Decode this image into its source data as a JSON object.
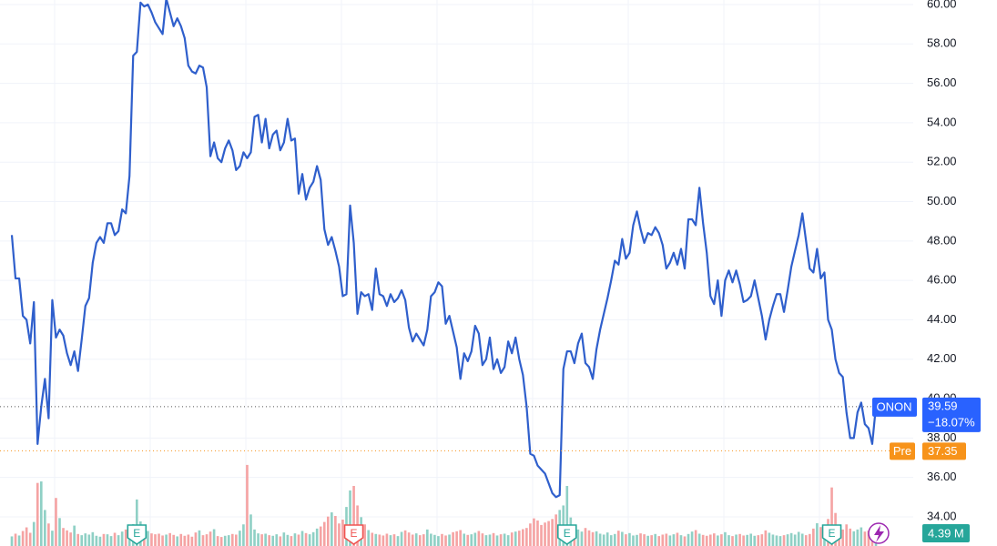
{
  "chart_data": {
    "type": "line",
    "ylim": [
      32.52,
      60.23
    ],
    "yticks": [
      {
        "value": 34,
        "label": "34.00"
      },
      {
        "value": 36,
        "label": "36.00"
      },
      {
        "value": 38,
        "label": "38.00"
      },
      {
        "value": 40,
        "label": "40.00"
      },
      {
        "value": 42,
        "label": "42.00"
      },
      {
        "value": 44,
        "label": "44.00"
      },
      {
        "value": 46,
        "label": "46.00"
      },
      {
        "value": 48,
        "label": "48.00"
      },
      {
        "value": 50,
        "label": "50.00"
      },
      {
        "value": 52,
        "label": "52.00"
      },
      {
        "value": 54,
        "label": "54.00"
      },
      {
        "value": 56,
        "label": "56.00"
      },
      {
        "value": 58,
        "label": "58.00"
      },
      {
        "value": 60,
        "label": "60.00"
      }
    ],
    "grid": true,
    "series": [
      {
        "name": "ONON",
        "color": "#2f5fcc",
        "change_label": "−18.07%",
        "values": [
          48.3,
          46.1,
          46.1,
          44.2,
          44.0,
          42.8,
          44.9,
          37.7,
          39.6,
          41.0,
          39.0,
          45.0,
          43.1,
          43.5,
          43.2,
          42.3,
          41.7,
          42.4,
          41.4,
          43.0,
          44.7,
          45.1,
          46.9,
          47.9,
          48.2,
          47.9,
          48.9,
          48.9,
          48.3,
          48.5,
          49.6,
          49.4,
          51.3,
          57.4,
          57.6,
          60.1,
          59.9,
          60.0,
          59.6,
          59.1,
          58.8,
          58.5,
          60.3,
          59.6,
          58.9,
          59.3,
          58.9,
          58.3,
          56.9,
          56.6,
          56.5,
          56.9,
          56.8,
          55.8,
          52.3,
          53.0,
          52.2,
          52.0,
          52.7,
          53.1,
          52.6,
          51.6,
          51.8,
          52.5,
          52.2,
          52.5,
          54.3,
          54.4,
          53.0,
          54.2,
          52.7,
          53.4,
          53.6,
          52.6,
          53.0,
          54.2,
          53.1,
          53.2,
          50.4,
          51.4,
          50.1,
          50.7,
          51.0,
          51.8,
          51.1,
          48.6,
          47.8,
          48.2,
          47.5,
          46.7,
          45.2,
          45.3,
          49.8,
          47.9,
          44.3,
          45.4,
          45.2,
          45.3,
          44.5,
          46.6,
          45.3,
          45.2,
          44.7,
          45.3,
          44.9,
          45.1,
          45.5,
          45.0,
          43.6,
          42.9,
          43.3,
          43.0,
          42.7,
          43.5,
          45.2,
          45.4,
          45.9,
          45.7,
          43.8,
          44.2,
          43.4,
          42.6,
          41.0,
          42.3,
          41.9,
          42.4,
          43.7,
          43.3,
          41.7,
          42.0,
          43.1,
          41.5,
          42.0,
          41.3,
          41.6,
          42.9,
          42.3,
          43.1,
          42.0,
          41.2,
          39.6,
          37.2,
          37.1,
          36.6,
          36.4,
          36.2,
          35.7,
          35.2,
          35.0,
          35.1,
          41.5,
          42.4,
          42.4,
          41.8,
          42.8,
          43.3,
          41.8,
          41.6,
          41.0,
          42.5,
          43.5,
          44.3,
          45.1,
          46.0,
          47.0,
          46.8,
          48.1,
          47.1,
          47.4,
          48.8,
          49.5,
          48.6,
          47.9,
          48.4,
          48.3,
          48.7,
          48.4,
          47.8,
          46.6,
          46.9,
          47.4,
          46.8,
          47.6,
          46.6,
          49.1,
          49.1,
          48.8,
          50.7,
          48.9,
          47.4,
          45.2,
          44.8,
          46.0,
          44.2,
          46.0,
          46.5,
          45.9,
          46.5,
          45.8,
          44.9,
          45.0,
          45.2,
          46.0,
          45.1,
          44.2,
          43.0,
          44.0,
          44.7,
          45.3,
          45.3,
          44.4,
          45.5,
          46.7,
          47.5,
          48.3,
          49.4,
          48.0,
          46.6,
          46.4,
          47.6,
          46.1,
          46.4,
          44.0,
          43.5,
          42.0,
          41.3,
          41.1,
          39.3,
          38.0,
          38.0,
          39.3,
          39.8,
          38.7,
          38.5,
          37.7,
          39.59
        ]
      }
    ],
    "premarket": {
      "label": "Pre",
      "value": 37.35,
      "color": "#f7931a"
    },
    "volume": {
      "up_color": "#8fd0c5",
      "down_color": "#f5a3a3",
      "label_color": "#26a69a",
      "values": [
        3.2,
        4.1,
        3.5,
        5.0,
        6.2,
        4.4,
        8.0,
        21,
        21.5,
        12,
        7.5,
        5.1,
        16,
        9.3,
        6.0,
        5.2,
        4.5,
        6.8,
        4.0,
        3.6,
        4.2,
        3.8,
        4.6,
        3.4,
        3.1,
        4.0,
        3.9,
        3.3,
        4.4,
        3.6,
        4.8,
        5.5,
        6.0,
        7.3,
        15.5,
        8.2,
        6.1,
        5.0,
        4.2,
        3.9,
        4.1,
        3.5,
        3.8,
        4.3,
        3.7,
        3.2,
        4.0,
        3.4,
        3.8,
        3.1,
        4.5,
        5.2,
        3.6,
        3.9,
        4.8,
        5.6,
        3.3,
        3.0,
        3.4,
        3.6,
        4.0,
        3.8,
        5.1,
        7.2,
        27.0,
        10.5,
        5.5,
        4.2,
        3.9,
        4.1,
        3.6,
        3.4,
        3.9,
        3.2,
        4.5,
        3.7,
        3.3,
        4.2,
        3.8,
        5.0,
        4.3,
        3.9,
        4.6,
        5.8,
        6.5,
        8.0,
        9.8,
        11.2,
        10.0,
        7.5,
        8.8,
        13.0,
        18.5,
        20.0,
        13.5,
        9.6,
        7.2,
        5.3,
        4.4,
        4.0,
        3.8,
        3.5,
        4.1,
        3.6,
        3.9,
        3.3,
        4.7,
        5.2,
        4.5,
        3.8,
        4.2,
        3.6,
        3.9,
        5.5,
        4.1,
        3.7,
        3.3,
        4.0,
        3.5,
        3.8,
        4.6,
        4.9,
        5.3,
        4.1,
        3.7,
        3.9,
        4.4,
        5.0,
        4.2,
        3.6,
        3.8,
        4.3,
        3.5,
        3.9,
        4.1,
        3.6,
        4.5,
        4.8,
        5.1,
        5.6,
        6.0,
        7.5,
        9.2,
        8.5,
        7.0,
        7.8,
        8.3,
        9.0,
        10.5,
        12.0,
        13.5,
        20.0,
        9.5,
        6.4,
        5.5,
        4.8,
        6.0,
        5.2,
        4.6,
        4.9,
        4.1,
        3.8,
        4.5,
        3.6,
        4.0,
        5.1,
        4.7,
        3.9,
        4.3,
        3.5,
        3.7,
        4.2,
        3.9,
        3.4,
        3.6,
        4.0,
        3.3,
        3.8,
        4.1,
        3.5,
        3.9,
        4.4,
        3.6,
        3.2,
        4.0,
        4.8,
        5.3,
        4.1,
        3.7,
        3.4,
        3.8,
        4.2,
        3.5,
        3.9,
        4.6,
        3.6,
        3.3,
        3.8,
        4.0,
        3.5,
        3.7,
        4.1,
        3.4,
        3.6,
        3.9,
        5.2,
        4.4,
        3.8,
        3.5,
        3.3,
        3.6,
        3.9,
        4.3,
        3.8,
        4.7,
        4.1,
        3.6,
        4.0,
        5.8,
        7.6,
        6.3,
        5.2,
        9.0,
        19.5,
        11.0,
        6.8,
        5.5,
        7.2,
        5.8,
        4.9,
        5.5,
        6.2,
        4.8,
        5.1,
        4.6,
        4.39
      ],
      "value_labels": [
        null,
        null,
        null,
        null,
        null,
        null,
        null,
        null,
        null,
        null,
        null,
        null,
        null,
        null,
        null,
        null,
        null,
        null,
        null,
        null,
        null,
        null,
        null,
        null,
        null,
        null,
        null,
        null,
        null,
        null,
        null,
        null,
        null,
        null,
        null,
        null,
        null,
        null,
        null,
        null,
        null,
        null,
        null,
        null,
        null,
        null,
        null,
        null,
        null,
        null,
        null,
        null,
        null,
        null,
        null,
        null,
        null,
        null,
        null,
        null,
        null,
        null,
        null,
        null,
        null,
        null,
        null,
        null,
        null,
        null,
        null,
        null,
        null,
        null,
        null,
        null,
        null,
        null,
        null,
        null,
        null,
        null,
        null,
        null,
        null,
        null,
        null,
        null,
        null,
        null,
        null,
        null,
        null,
        null,
        null,
        null,
        null,
        null,
        null,
        null,
        null,
        null,
        null,
        null,
        null,
        null,
        null,
        null,
        null,
        null,
        null,
        null,
        null,
        null,
        null,
        null,
        null,
        null,
        null,
        null,
        null,
        null,
        null,
        null,
        null,
        null,
        null,
        null,
        null,
        null,
        null,
        null,
        null,
        null,
        null,
        null,
        null,
        null,
        null,
        null,
        null,
        null,
        null,
        null,
        null,
        null,
        null,
        null,
        null,
        null,
        null,
        null,
        null,
        null,
        null,
        null,
        null,
        null,
        null,
        null,
        null,
        null,
        null,
        null,
        null,
        null,
        null,
        null,
        null,
        null,
        null,
        null,
        null,
        null,
        null,
        null,
        null,
        null,
        null,
        null,
        null,
        null,
        null,
        null,
        null,
        null,
        null,
        null,
        null,
        null,
        null,
        null,
        null,
        null,
        null,
        null,
        null,
        null,
        null,
        null,
        null,
        null,
        null,
        null,
        null,
        null,
        null,
        null,
        null,
        null,
        null,
        null,
        null,
        null,
        null,
        null,
        null,
        null,
        null,
        null,
        null,
        null,
        null,
        null,
        null,
        null,
        null,
        null,
        null,
        null,
        null,
        null,
        null,
        null,
        null,
        "4.39 M"
      ]
    },
    "earnings": [
      {
        "index": 34,
        "label": "E",
        "color": "#26a69a"
      },
      {
        "index": 93,
        "label": "E",
        "color": "#ef5350"
      },
      {
        "index": 151,
        "label": "E",
        "color": "#26a69a"
      },
      {
        "index": 223,
        "label": "E",
        "color": "#26a69a"
      }
    ]
  }
}
